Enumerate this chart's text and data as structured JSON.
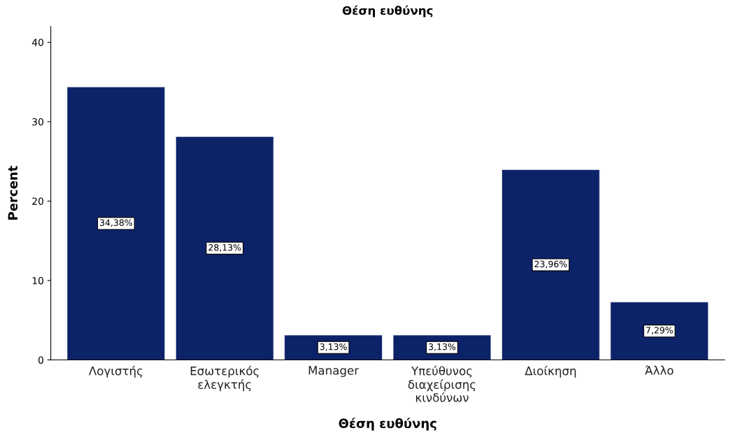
{
  "chart_data": {
    "type": "bar",
    "title": "Θέση ευθύνης",
    "xlabel": "Θέση ευθύνης",
    "ylabel": "Percent",
    "categories": [
      "Λογιστής",
      "Εσωτερικός\nελεγκτής",
      "Manager",
      "Υπεύθυνος\nδιαχείρισης\nκινδύνων",
      "Διοίκηση",
      "Άλλο"
    ],
    "values": [
      34.38,
      28.13,
      3.13,
      3.13,
      23.96,
      7.29
    ],
    "value_labels": [
      "34,38%",
      "28,13%",
      "3,13%",
      "3,13%",
      "23,96%",
      "7,29%"
    ],
    "color": "#0c2369",
    "ylim": [
      0,
      42
    ],
    "yticks": [
      0,
      10,
      20,
      30,
      40
    ],
    "grid": false,
    "legend": false
  }
}
